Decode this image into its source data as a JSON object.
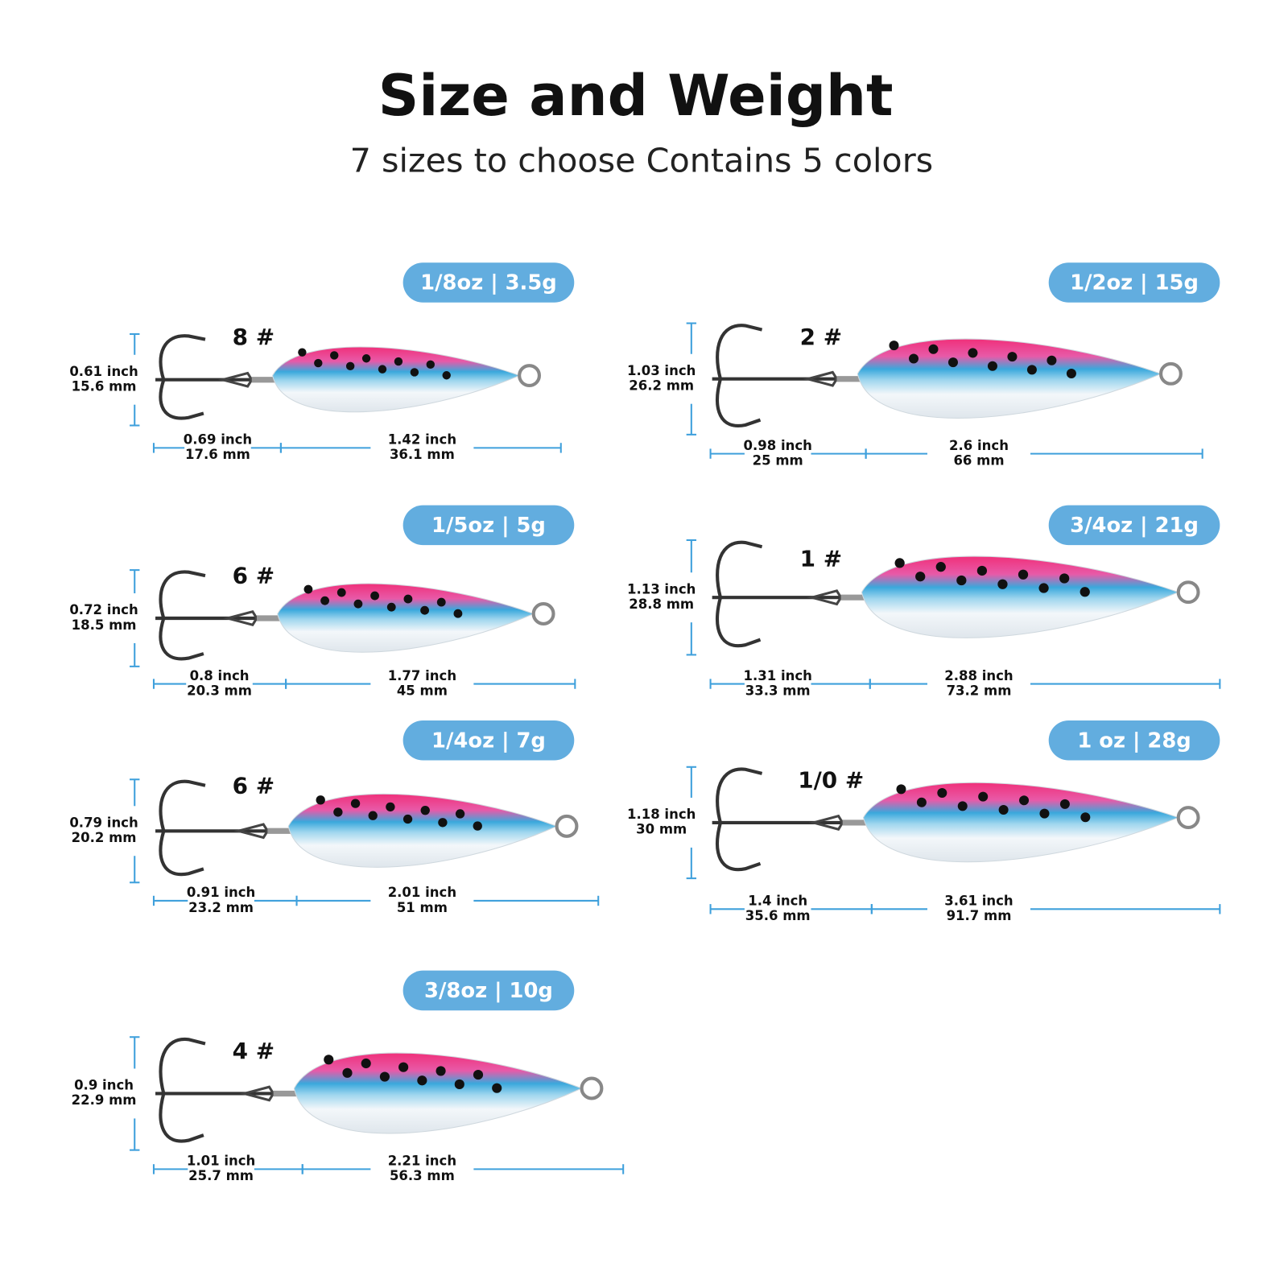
{
  "header": {
    "title": "Size and Weight",
    "subtitle": "7 sizes to choose Contains 5 colors"
  },
  "items": [
    {
      "weight": "1/8oz | 3.5g",
      "hook": "8 #",
      "height": [
        "0.61 inch",
        "15.6 mm"
      ],
      "hook_length": [
        "0.69 inch",
        "17.6 mm"
      ],
      "body_length": [
        "1.42 inch",
        "36.1 mm"
      ]
    },
    {
      "weight": "1/2oz | 15g",
      "hook": "2 #",
      "height": [
        "1.03 inch",
        "26.2 mm"
      ],
      "hook_length": [
        "0.98 inch",
        "25 mm"
      ],
      "body_length": [
        "2.6 inch",
        "66 mm"
      ]
    },
    {
      "weight": "1/5oz | 5g",
      "hook": "6 #",
      "height": [
        "0.72 inch",
        "18.5 mm"
      ],
      "hook_length": [
        "0.8 inch",
        "20.3 mm"
      ],
      "body_length": [
        "1.77 inch",
        "45 mm"
      ]
    },
    {
      "weight": "3/4oz | 21g",
      "hook": "1 #",
      "height": [
        "1.13 inch",
        "28.8 mm"
      ],
      "hook_length": [
        "1.31 inch",
        "33.3 mm"
      ],
      "body_length": [
        "2.88 inch",
        "73.2 mm"
      ]
    },
    {
      "weight": "1/4oz | 7g",
      "hook": "6 #",
      "height": [
        "0.79 inch",
        "20.2 mm"
      ],
      "hook_length": [
        "0.91 inch",
        "23.2 mm"
      ],
      "body_length": [
        "2.01 inch",
        "51 mm"
      ]
    },
    {
      "weight": "1 oz | 28g",
      "hook": "1/0 #",
      "height": [
        "1.18 inch",
        "30 mm"
      ],
      "hook_length": [
        "1.4 inch",
        "35.6 mm"
      ],
      "body_length": [
        "3.61 inch",
        "91.7 mm"
      ]
    },
    {
      "weight": "3/8oz | 10g",
      "hook": "4 #",
      "height": [
        "0.9 inch",
        "22.9 mm"
      ],
      "hook_length": [
        "1.01 inch",
        "25.7 mm"
      ],
      "body_length": [
        "2.21 inch",
        "56.3 mm"
      ]
    }
  ]
}
